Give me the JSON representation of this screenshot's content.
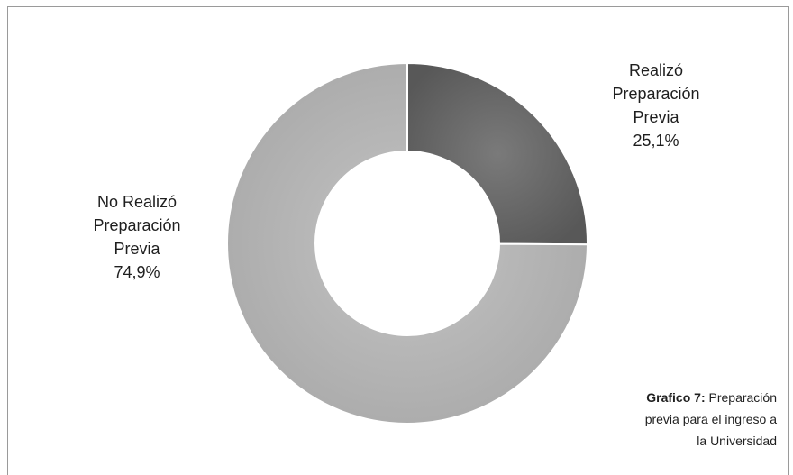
{
  "chart_data": {
    "type": "pie",
    "variant": "doughnut",
    "title": "",
    "slices": [
      {
        "label_lines": [
          "Realizó",
          "Preparación",
          "Previa"
        ],
        "value": 25.1,
        "value_label": "25,1%",
        "color": "#6a6a6a"
      },
      {
        "label_lines": [
          "No Realizó",
          "Preparación",
          "Previa"
        ],
        "value": 74.9,
        "value_label": "74,9%",
        "color": "#b4b4b4"
      }
    ]
  },
  "caption": {
    "bold": "Grafico 7:",
    "text_line1": " Preparación",
    "text_line2": "previa para el ingreso a",
    "text_line3": "la Universidad"
  },
  "colors": {
    "border": "#9a9a9a",
    "slice_edge": "#ffffff"
  }
}
